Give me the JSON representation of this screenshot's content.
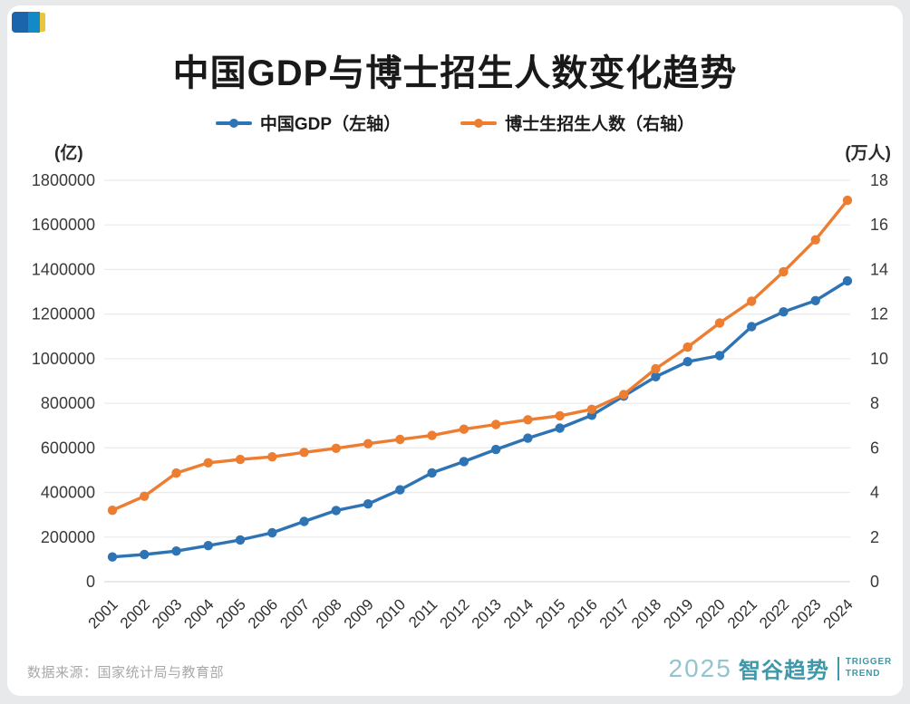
{
  "page": {
    "background": "#e7e9ea",
    "card_background": "#ffffff"
  },
  "header": {
    "logo_colors": {
      "dark_blue": "#1b65ac",
      "light_blue": "#1489c8",
      "yellow": "#e9c63b"
    }
  },
  "title": "中国GDP与博士招生人数变化趋势",
  "legend": [
    {
      "label": "中国GDP（左轴）",
      "color": "#2e74b5"
    },
    {
      "label": "博士生招生人数（右轴）",
      "color": "#ed7d31"
    }
  ],
  "axes": {
    "left_unit": "(亿)",
    "right_unit": "(万人)",
    "left_tick_labels": [
      "0",
      "200000",
      "400000",
      "600000",
      "800000",
      "1000000",
      "1200000",
      "1400000",
      "1600000",
      "1800000"
    ],
    "right_tick_labels": [
      "0",
      "2",
      "4",
      "6",
      "8",
      "10",
      "12",
      "14",
      "16",
      "18"
    ]
  },
  "chart_data": {
    "type": "line",
    "title": "中国GDP与博士招生人数变化趋势",
    "categories": [
      "2001",
      "2002",
      "2003",
      "2004",
      "2005",
      "2006",
      "2007",
      "2008",
      "2009",
      "2010",
      "2011",
      "2012",
      "2013",
      "2014",
      "2015",
      "2016",
      "2017",
      "2018",
      "2019",
      "2020",
      "2021",
      "2022",
      "2023",
      "2024"
    ],
    "series": [
      {
        "name": "中国GDP（左轴）",
        "axis": "left",
        "color": "#2e74b5",
        "values": [
          110863,
          121717,
          137422,
          161840,
          187319,
          219439,
          270092,
          319245,
          348518,
          412119,
          487940,
          538580,
          592963,
          643563,
          688858,
          746395,
          832036,
          919281,
          986515,
          1013567,
          1143670,
          1210207,
          1260582,
          1349084
        ]
      },
      {
        "name": "博士生招生人数（右轴）",
        "axis": "right",
        "color": "#ed7d31",
        "values": [
          3.2,
          3.83,
          4.87,
          5.33,
          5.48,
          5.6,
          5.8,
          5.98,
          6.19,
          6.38,
          6.56,
          6.84,
          7.05,
          7.26,
          7.44,
          7.73,
          8.39,
          9.55,
          10.52,
          11.6,
          12.58,
          13.9,
          15.33,
          17.1
        ]
      }
    ],
    "left_axis": {
      "min": 0,
      "max": 1800000,
      "step": 200000,
      "unit": "(亿)"
    },
    "right_axis": {
      "min": 0,
      "max": 18,
      "step": 2,
      "unit": "(万人)"
    },
    "grid": "horizontal",
    "legend_position": "top",
    "styles": {
      "gridline_color": "#ebebeb",
      "baseline_color": "#dcdcdc",
      "tick_text_color": "#3a3a3a"
    }
  },
  "footer": {
    "source": "数据来源：国家统计局与教育部",
    "brand": {
      "year": "2025",
      "name": "智谷趋势",
      "tagline_line1": "TRIGGER",
      "tagline_line2": "TREND",
      "color": "#3e98a9",
      "year_color": "#93c4cf"
    }
  }
}
